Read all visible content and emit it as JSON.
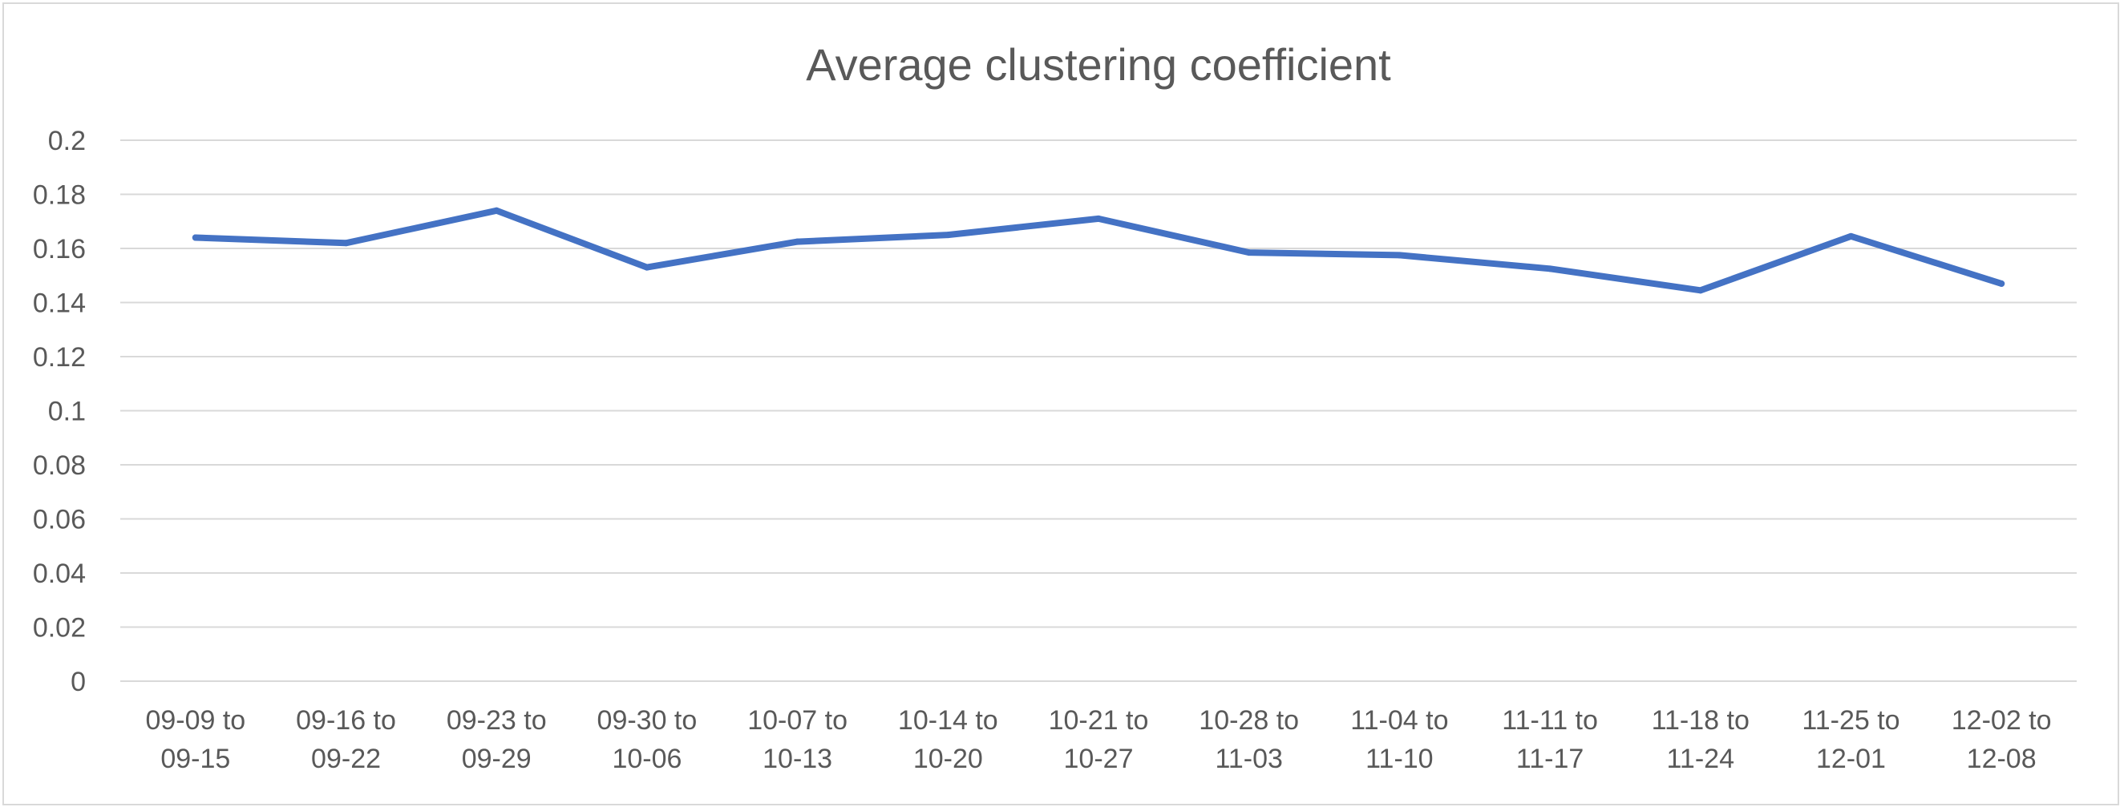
{
  "chart_data": {
    "type": "line",
    "title": "Average clustering coefficient",
    "xlabel": "",
    "ylabel": "",
    "categories": [
      [
        "09-09 to",
        "09-15"
      ],
      [
        "09-16 to",
        "09-22"
      ],
      [
        "09-23 to",
        "09-29"
      ],
      [
        "09-30 to",
        "10-06"
      ],
      [
        "10-07 to",
        "10-13"
      ],
      [
        "10-14 to",
        "10-20"
      ],
      [
        "10-21 to",
        "10-27"
      ],
      [
        "10-28 to",
        "11-03"
      ],
      [
        "11-04 to",
        "11-10"
      ],
      [
        "11-11 to",
        "11-17"
      ],
      [
        "11-18 to",
        "11-24"
      ],
      [
        "11-25 to",
        "12-01"
      ],
      [
        "12-02 to",
        "12-08"
      ]
    ],
    "series": [
      {
        "values": [
          0.164,
          0.162,
          0.174,
          0.153,
          0.1625,
          0.165,
          0.171,
          0.1585,
          0.1575,
          0.1525,
          0.1445,
          0.1645,
          0.147
        ],
        "color": "#4472c4"
      }
    ],
    "ylim": [
      0,
      0.2
    ],
    "yticks": [
      "0",
      "0.02",
      "0.04",
      "0.06",
      "0.08",
      "0.1",
      "0.12",
      "0.14",
      "0.16",
      "0.18",
      "0.2"
    ],
    "grid": true,
    "legend": "none"
  }
}
